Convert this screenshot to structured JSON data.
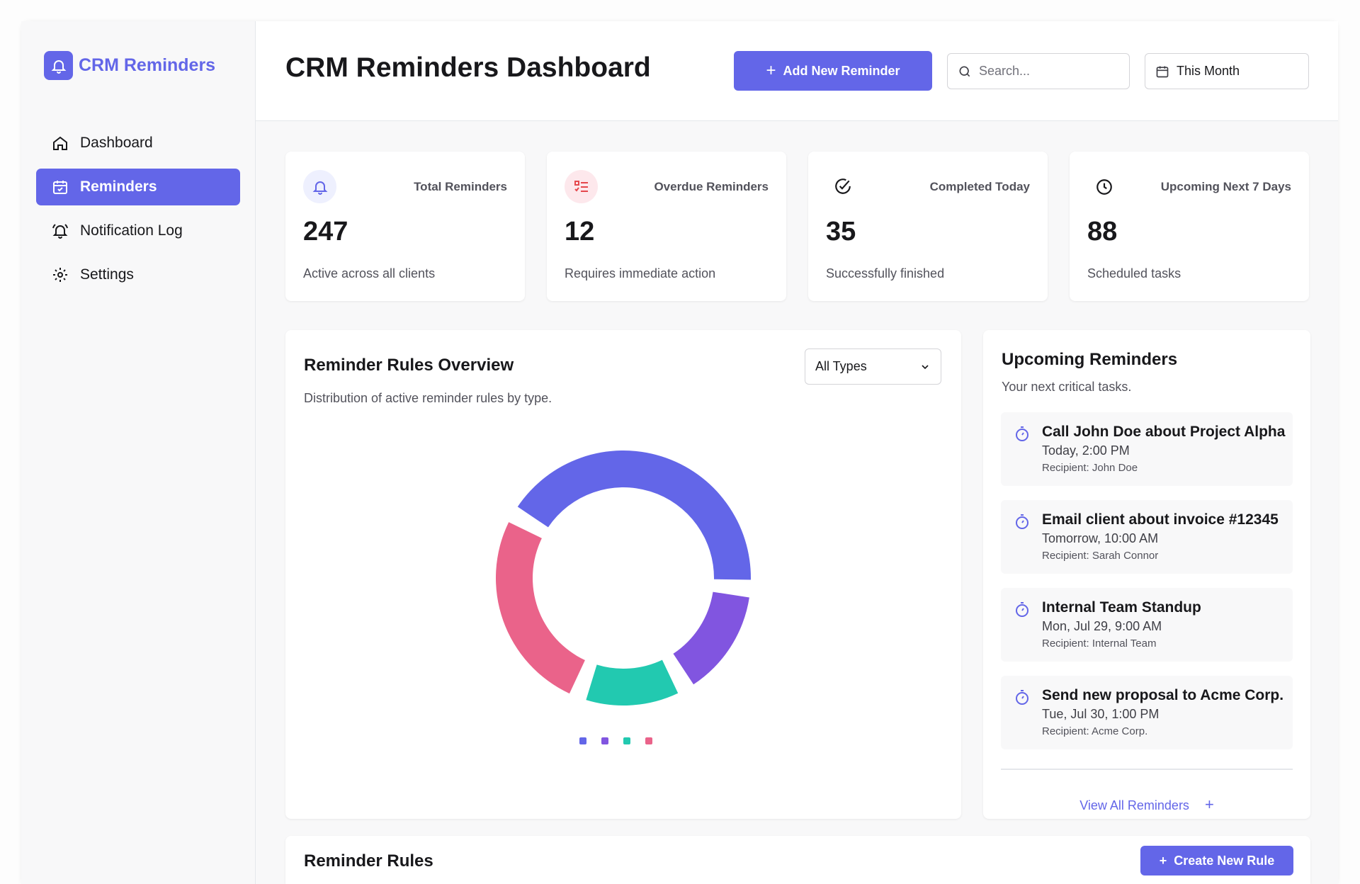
{
  "app": {
    "name": "CRM Reminders"
  },
  "sidebar": {
    "items": [
      {
        "label": "Dashboard",
        "icon": "home-icon"
      },
      {
        "label": "Reminders",
        "icon": "calendar-check-icon",
        "active": true
      },
      {
        "label": "Notification Log",
        "icon": "bell-ring-icon"
      },
      {
        "label": "Settings",
        "icon": "gear-icon"
      }
    ]
  },
  "header": {
    "title": "CRM Reminders Dashboard",
    "add_label": "Add New Reminder",
    "search_placeholder": "Search...",
    "range": "This Month"
  },
  "stats": [
    {
      "label": "Total Reminders",
      "value": "247",
      "sub": "Active across all clients",
      "icon": "bell-icon"
    },
    {
      "label": "Overdue Reminders",
      "value": "12",
      "sub": "Requires immediate action",
      "icon": "list-check-icon"
    },
    {
      "label": "Completed Today",
      "value": "35",
      "sub": "Successfully finished",
      "icon": "check-circle-icon"
    },
    {
      "label": "Upcoming Next 7 Days",
      "value": "88",
      "sub": "Scheduled tasks",
      "icon": "clock-icon"
    }
  ],
  "overview": {
    "title": "Reminder Rules Overview",
    "subtitle": "Distribution of active reminder rules by type.",
    "filter": "All Types"
  },
  "chart_data": {
    "type": "pie",
    "donut": true,
    "title": "Reminder Rules Overview",
    "start_angle_deg": -60,
    "series": [
      {
        "value": 43,
        "color": "#6366e8"
      },
      {
        "value": 15.5,
        "color": "#8155e0"
      },
      {
        "value": 14,
        "color": "#22c9b0"
      },
      {
        "value": 27.5,
        "color": "#ea638a"
      }
    ],
    "legend": "bottom"
  },
  "upcoming": {
    "title": "Upcoming Reminders",
    "subtitle": "Your next critical tasks.",
    "items": [
      {
        "title": "Call John Doe about Project Alpha",
        "when": "Today, 2:00 PM",
        "recipient": "Recipient: John Doe"
      },
      {
        "title": "Email client about invoice #12345",
        "when": "Tomorrow, 10:00 AM",
        "recipient": "Recipient: Sarah Connor"
      },
      {
        "title": "Internal Team Standup",
        "when": "Mon, Jul 29, 9:00 AM",
        "recipient": "Recipient: Internal Team"
      },
      {
        "title": "Send new proposal to Acme Corp.",
        "when": "Tue, Jul 30, 1:00 PM",
        "recipient": "Recipient: Acme Corp."
      }
    ],
    "view_all": "View All Reminders"
  },
  "rules": {
    "title": "Reminder Rules",
    "create_label": "Create New Rule"
  }
}
